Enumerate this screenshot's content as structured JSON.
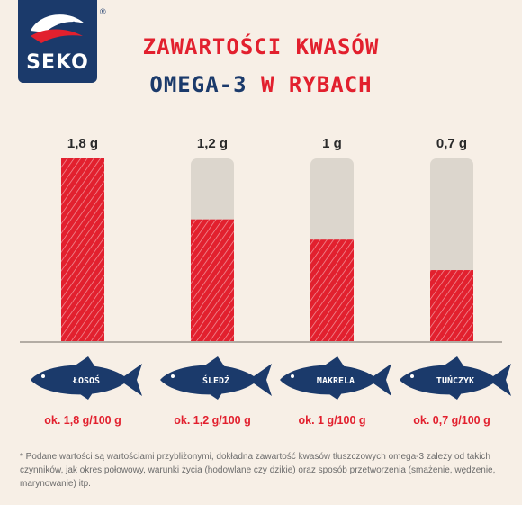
{
  "brand": {
    "name": "SEKO",
    "trademark": "®"
  },
  "title": {
    "line1": "ZAWARTOŚCI KWASÓW",
    "line2a": "OMEGA-3",
    "line2b": "W RYBACH"
  },
  "chart_data": {
    "type": "bar",
    "categories": [
      "ŁOSOŚ",
      "ŚLEDŹ",
      "MAKRELA",
      "TUŃCZYK"
    ],
    "values": [
      1.8,
      1.2,
      1.0,
      0.7
    ],
    "value_labels": [
      "1,8 g",
      "1,2 g",
      "1 g",
      "0,7 g"
    ],
    "bottom_labels": [
      "ok. 1,8 g/100 g",
      "ok. 1,2 g/100 g",
      "ok. 1 g/100 g",
      "ok. 0,7 g/100 g"
    ],
    "ylim": [
      0,
      1.8
    ],
    "bar_color": "#e2202e",
    "track_color": "#dcd6cd",
    "fish_color": "#1b3a6b"
  },
  "footnote": "* Podane wartości są wartościami przybliżonymi, dokładna zawartość kwasów tłuszczowych omega-3 zależy od takich czynników, jak okres połowowy, warunki życia (hodowlane czy dzikie) oraz sposób przetworzenia (smażenie, wędzenie, marynowanie) itp."
}
